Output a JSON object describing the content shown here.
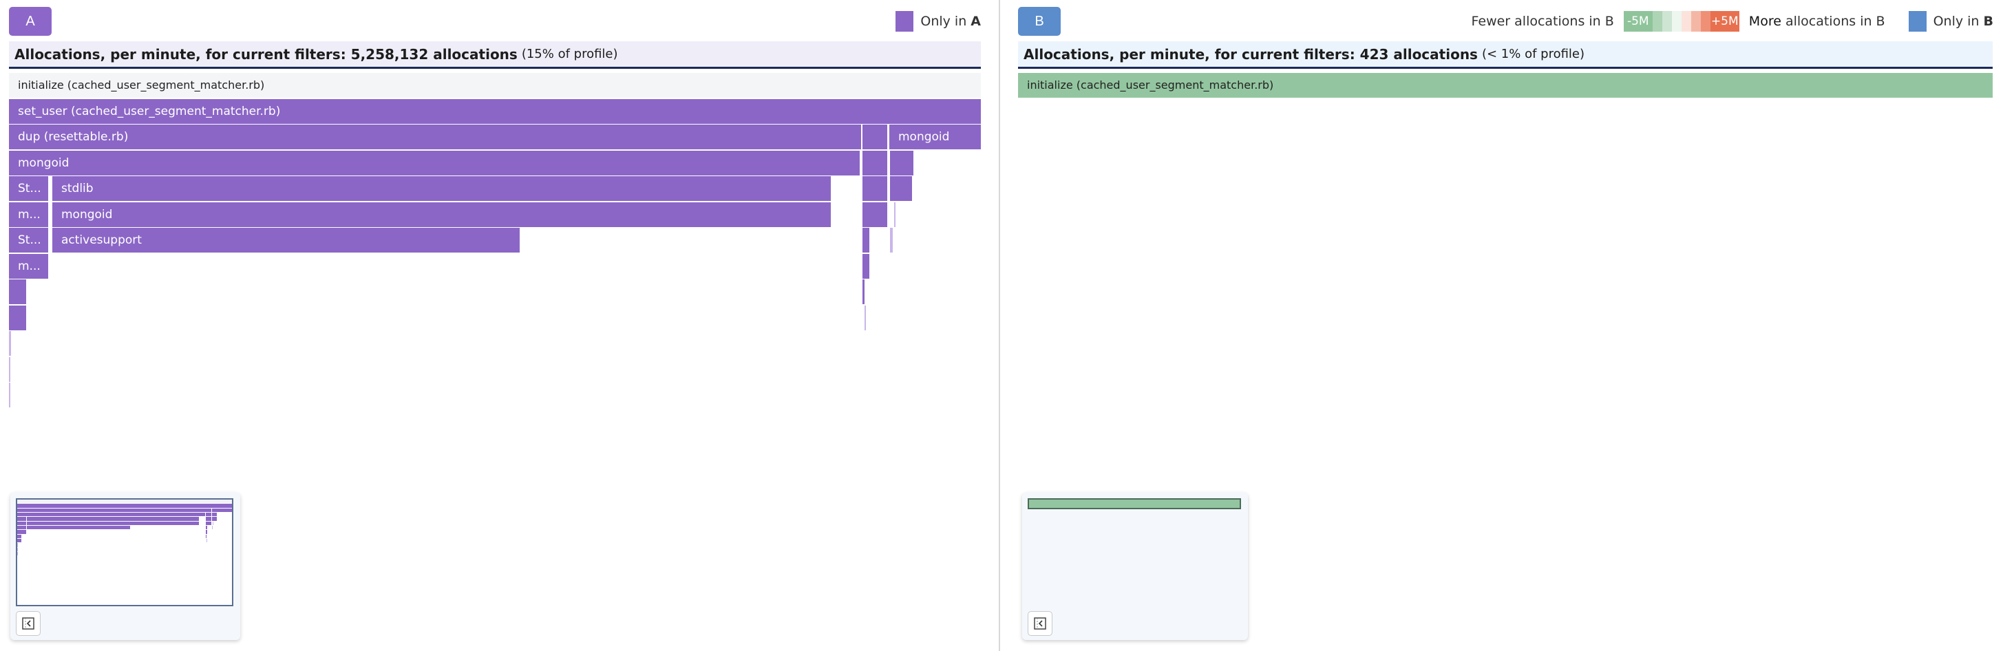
{
  "colors": {
    "only_a": "#8b66c6",
    "only_b": "#5b8ccb",
    "fewer": "#93c6a0",
    "more": "#e8704f",
    "root": "#f4f5f7",
    "title_a_bg": "#efedf8",
    "title_b_bg": "#ebf4fc"
  },
  "panel_a": {
    "button": "A",
    "legend": {
      "prefix": "Only in ",
      "bold": "A"
    },
    "title": {
      "main": "Allocations, per minute, for current filters: 5,258,132 allocations",
      "note": "(15% of profile)"
    },
    "frames": [
      "initialize (cached_user_segment_matcher.rb)",
      "set_user (cached_user_segment_matcher.rb)",
      "dup (resettable.rb)",
      "mongoid",
      "mongoid",
      "St...",
      "stdlib",
      "m...",
      "mongoid",
      "St...",
      "activesupport",
      "m..."
    ],
    "minimap_toggle_icon": "sidebar-collapse-icon"
  },
  "panel_b": {
    "button": "B",
    "legend": {
      "fewer": "Fewer allocations in B",
      "minus": "-5M",
      "plus": "+5M",
      "more_bold": "More",
      "more_rest": " allocations in B",
      "only_prefix": "Only in ",
      "only_bold": "B"
    },
    "title": {
      "main": "Allocations, per minute, for current filters: 423 allocations",
      "note": "(< 1% of profile)"
    },
    "frames": [
      "initialize (cached_user_segment_matcher.rb)"
    ],
    "minimap_toggle_icon": "sidebar-collapse-icon"
  }
}
